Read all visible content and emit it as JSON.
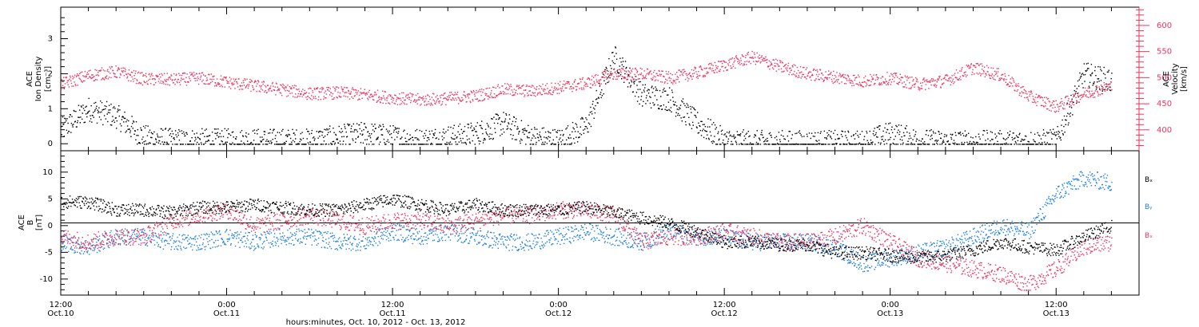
{
  "colors": {
    "black": "#000000",
    "red": "#E8365F",
    "blue": "#1E7FE0"
  },
  "x_axis": {
    "title": "hours:minutes, Oct. 10, 2012 - Oct. 13, 2012",
    "range_hours": [
      0,
      78
    ],
    "tick_hours": [
      0,
      12,
      24,
      36,
      48,
      60,
      72
    ],
    "tick_labels_time": [
      "12:00",
      "0:00",
      "12:00",
      "0:00",
      "12:00",
      "0:00",
      "12:00"
    ],
    "tick_labels_day": [
      "Oct.10",
      "Oct.11",
      "Oct.11",
      "Oct.12",
      "Oct.12",
      "Oct.13",
      "Oct.13"
    ],
    "minor_step_hours": 2
  },
  "chart_data": [
    {
      "type": "scatter",
      "panel": "top",
      "ylabel_left": [
        "ACE",
        "Ion Density",
        "[cm⁻³]"
      ],
      "ylabel_right": [
        "ACE",
        "Velocity",
        "[km/s]"
      ],
      "ylim_left": [
        -0.2,
        3.9
      ],
      "yticks_left": [
        0,
        1,
        2,
        3
      ],
      "ylim_right": [
        360,
        635
      ],
      "yticks_right": [
        400,
        450,
        500,
        550,
        600
      ],
      "series": [
        {
          "axis": "left",
          "color": "black",
          "x": [
            0,
            2,
            4,
            6,
            8,
            10,
            12,
            14,
            16,
            18,
            20,
            22,
            24,
            26,
            28,
            30,
            32,
            34,
            36,
            38,
            40,
            42,
            44,
            46,
            48,
            50,
            52,
            54,
            56,
            58,
            60,
            62,
            64,
            66,
            68,
            70,
            72,
            74,
            76
          ],
          "y": [
            0.4,
            1.0,
            0.8,
            0.2,
            0.1,
            0.1,
            0.1,
            0.1,
            0.1,
            0.1,
            0.2,
            0.3,
            0.2,
            0.1,
            0.2,
            0.3,
            0.6,
            0.2,
            0.1,
            0.5,
            2.5,
            1.4,
            1.3,
            0.6,
            0.1,
            0.05,
            0.05,
            0.05,
            0.05,
            0.05,
            0.3,
            0.1,
            0.05,
            0.05,
            0.05,
            0.05,
            0.1,
            2.0,
            1.8
          ]
        },
        {
          "axis": "right",
          "color": "red",
          "x": [
            0,
            2,
            4,
            6,
            8,
            10,
            12,
            14,
            16,
            18,
            20,
            22,
            24,
            26,
            28,
            30,
            32,
            34,
            36,
            38,
            40,
            42,
            44,
            46,
            48,
            50,
            52,
            54,
            56,
            58,
            60,
            62,
            64,
            66,
            68,
            70,
            72,
            74,
            76
          ],
          "y": [
            488,
            505,
            512,
            498,
            497,
            500,
            492,
            485,
            478,
            470,
            472,
            468,
            462,
            458,
            461,
            466,
            478,
            475,
            482,
            490,
            508,
            508,
            500,
            510,
            525,
            540,
            522,
            508,
            502,
            494,
            500,
            488,
            495,
            520,
            505,
            465,
            445,
            470,
            485
          ]
        }
      ]
    },
    {
      "type": "scatter",
      "panel": "bottom",
      "ylabel": [
        "ACE",
        "B",
        "[nT]"
      ],
      "ylim": [
        -13,
        14
      ],
      "yticks": [
        -10,
        -5,
        0,
        5,
        10
      ],
      "zero_line": true,
      "series": [
        {
          "name": "Bₓ",
          "color": "black",
          "x": [
            0,
            2,
            4,
            6,
            8,
            10,
            12,
            14,
            16,
            18,
            20,
            22,
            24,
            26,
            28,
            30,
            32,
            34,
            36,
            38,
            40,
            42,
            44,
            46,
            48,
            50,
            52,
            54,
            56,
            58,
            60,
            62,
            64,
            66,
            68,
            70,
            72,
            74,
            76
          ],
          "y": [
            4.5,
            4.5,
            3.0,
            3.0,
            2.5,
            3.5,
            3.5,
            4.0,
            3.5,
            3.0,
            3.0,
            4.0,
            5.0,
            4.0,
            3.0,
            4.0,
            3.0,
            3.0,
            3.0,
            3.5,
            2.5,
            1.5,
            0.5,
            -1.0,
            -3.0,
            -3.0,
            -3.5,
            -3.5,
            -5.0,
            -5.0,
            -5.5,
            -6.0,
            -5.5,
            -4.5,
            -3.0,
            -4.0,
            -4.5,
            -2.0,
            0.0
          ]
        },
        {
          "name": "Bᵧ",
          "color": "blue",
          "x": [
            0,
            2,
            4,
            6,
            8,
            10,
            12,
            14,
            16,
            18,
            20,
            22,
            24,
            26,
            28,
            30,
            32,
            34,
            36,
            38,
            40,
            42,
            44,
            46,
            48,
            50,
            52,
            54,
            56,
            58,
            60,
            62,
            64,
            66,
            68,
            70,
            72,
            74,
            76
          ],
          "y": [
            -3,
            -4,
            -2,
            -2,
            -3,
            -3,
            -2,
            -3,
            -2,
            -2,
            -3,
            -3,
            -1,
            -2,
            -1,
            -2,
            -3,
            -3,
            -2,
            -1,
            -2,
            -3,
            -1,
            -2,
            -2,
            -3,
            -3,
            -3,
            -4,
            -7,
            -6,
            -5,
            -4,
            -2,
            0,
            -1,
            6,
            9,
            8
          ]
        },
        {
          "name": "Bₓ",
          "color": "red",
          "x": [
            0,
            2,
            4,
            6,
            8,
            10,
            12,
            14,
            16,
            18,
            20,
            22,
            24,
            26,
            28,
            30,
            32,
            34,
            36,
            38,
            40,
            42,
            44,
            46,
            48,
            50,
            52,
            54,
            56,
            58,
            60,
            62,
            64,
            66,
            68,
            70,
            72,
            74,
            76
          ],
          "y": [
            -2,
            -3,
            -2,
            -2,
            1,
            2,
            3,
            0,
            1,
            2,
            1,
            0,
            1,
            1,
            0,
            1,
            2,
            2,
            3,
            3,
            2,
            -3,
            -2,
            -2,
            -1,
            -2,
            -3,
            -3,
            -2,
            0,
            -3,
            -6,
            -7,
            -8,
            -9,
            -11,
            -8,
            -4,
            -3
          ]
        }
      ],
      "legend": [
        "Bₓ",
        "Bᵧ",
        "Bₓ"
      ]
    }
  ]
}
